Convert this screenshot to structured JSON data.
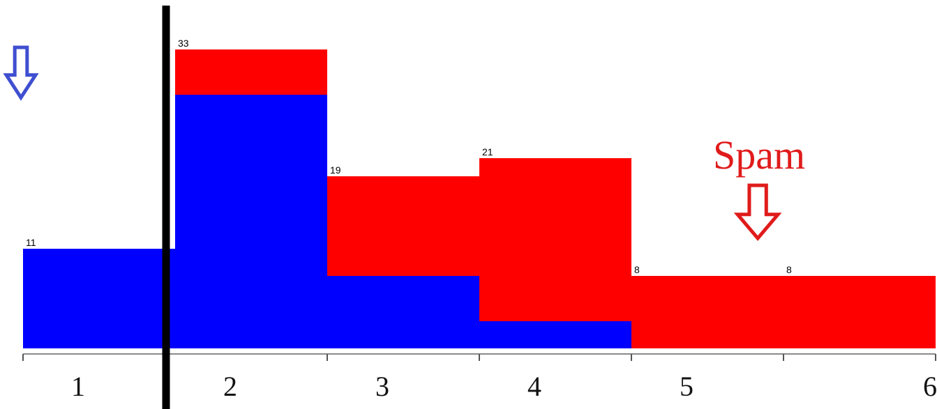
{
  "chart_data": {
    "type": "bar",
    "stacked": true,
    "categories": [
      "1",
      "2",
      "3",
      "4",
      "5",
      "6"
    ],
    "series": [
      {
        "values": [
          11,
          28,
          8,
          3,
          0,
          0
        ]
      },
      {
        "values": [
          0,
          5,
          11,
          18,
          8,
          8
        ]
      }
    ],
    "totals": [
      11,
      33,
      19,
      21,
      8,
      8
    ],
    "ylim": [
      0,
      35
    ],
    "grid": false,
    "colors": {
      "series": [
        "#0000ff",
        "#ff0000"
      ],
      "left_arrow": "#3f4fd0",
      "annotation": "#e01b1b",
      "threshold_line": "#000000"
    },
    "threshold_between_categories": [
      "1",
      "2"
    ],
    "annotations": [
      {
        "text": "",
        "icon": "down-arrow-icon",
        "category": "1",
        "color": "#3f4fd0"
      },
      {
        "text": "Spam",
        "icon": "down-arrow-icon",
        "category": "5",
        "color": "#e01b1b"
      }
    ]
  }
}
